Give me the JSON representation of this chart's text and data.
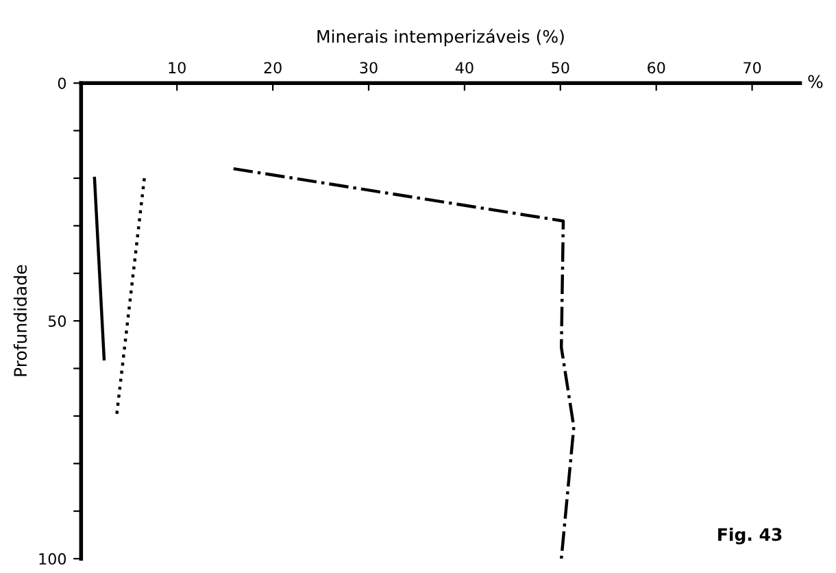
{
  "chart_data": {
    "type": "line",
    "xlabel": "Minerais intemperizáveis (%)",
    "ylabel": "Profundidade",
    "xlim": [
      0,
      75
    ],
    "xticks": [
      {
        "value": 0,
        "label": null
      },
      10,
      20,
      30,
      40,
      50,
      60,
      70
    ],
    "ylim": [
      100,
      0
    ],
    "yticks": [
      0,
      {
        "value": 10,
        "label": null
      },
      {
        "value": 20,
        "label": null
      },
      {
        "value": 30,
        "label": null
      },
      {
        "value": 40,
        "label": null
      },
      50,
      {
        "value": 60,
        "label": null
      },
      {
        "value": 70,
        "label": null
      },
      {
        "value": 80,
        "label": null
      },
      {
        "value": 90,
        "label": null
      },
      100
    ],
    "grid": false,
    "legend": false,
    "marker": "none",
    "series": [
      {
        "color": "#000000",
        "line_style": "solid",
        "x": [
          1.4,
          2.4
        ],
        "values": [
          20,
          58
        ]
      },
      {
        "color": "#000000",
        "line_style": "dotted",
        "x": [
          6.6,
          3.7
        ],
        "values": [
          20,
          70
        ]
      },
      {
        "color": "#000000",
        "line_style": "dashdot",
        "x": [
          15.9,
          50.3,
          50.1,
          51.4,
          50.1
        ],
        "values": [
          18,
          29,
          55.6,
          72.3,
          100
        ]
      }
    ],
    "annotations": [
      "%",
      "Fig. 43"
    ]
  }
}
